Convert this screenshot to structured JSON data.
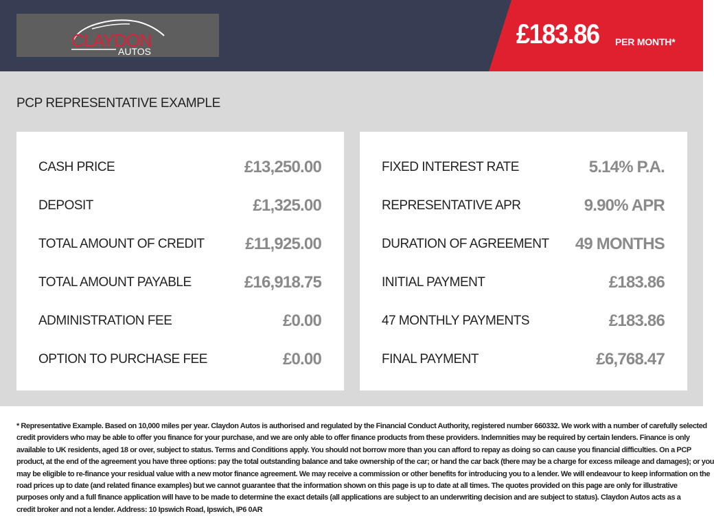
{
  "header": {
    "logo": {
      "brand_top": "CLAYDON",
      "brand_bottom": "AUTOS"
    },
    "price": "£183.86",
    "price_suffix": "PER MONTH*",
    "colors": {
      "navy": "#373d52",
      "red": "#e0202e"
    }
  },
  "main": {
    "title": "PCP REPRESENTATIVE EXAMPLE",
    "left": [
      {
        "label": "CASH PRICE",
        "value": "£13,250.00"
      },
      {
        "label": "DEPOSIT",
        "value": "£1,325.00"
      },
      {
        "label": "TOTAL AMOUNT OF CREDIT",
        "value": "£11,925.00"
      },
      {
        "label": "TOTAL AMOUNT PAYABLE",
        "value": "£16,918.75"
      },
      {
        "label": "ADMINISTRATION FEE",
        "value": "£0.00"
      },
      {
        "label": "OPTION TO PURCHASE FEE",
        "value": "£0.00"
      }
    ],
    "right": [
      {
        "label": "FIXED INTEREST RATE",
        "value": "5.14% P.A."
      },
      {
        "label": "REPRESENTATIVE APR",
        "value": "9.90% APR"
      },
      {
        "label": "DURATION OF AGREEMENT",
        "value": "49 MONTHS"
      },
      {
        "label": "INITIAL PAYMENT",
        "value": "£183.86"
      },
      {
        "label": "47 MONTHLY PAYMENTS",
        "value": "£183.86"
      },
      {
        "label": "FINAL PAYMENT",
        "value": "£6,768.47"
      }
    ]
  },
  "footer": {
    "lines": [
      "* Representative Example. Based on 10,000 miles per year. Claydon Autos is authorised and regulated by the Financial Conduct Authority, registered number 660332. We work with a number of carefully selected",
      "credit providers who may be able to offer you finance for your purchase, and we are only able to offer finance products from these providers. Indemnities may be required by certain lenders. Finance is only",
      "available to UK residents, aged 18 or over, subject to status. Terms and Conditions apply. You should not borrow more than you can afford to repay as doing so can cause you financial difficulties. On a PCP",
      "product, at the end of the agreement you have three options: pay the total outstanding balance and take ownership of the car; or hand the car back (there may be a charge for excess mileage and damages); or you",
      "may be eligible to re-finance your residual value with a new motor finance agreement. We may receive a commission or other benefits for introducing you to a lender. We will endeavour to keep information on the",
      "road prices up to date (and related finance examples) but we cannot guarantee that the information shown on this page is up to date at all times. The quotes provided on this page are only for illustrative",
      "purposes only and a full finance application will have to be made to determine the exact details (all applications are subject to an underwriting decision and are subject to status). Claydon Autos acts as a",
      "credit broker and not a lender. Address: 10 Ipswich Road, Ipswich, IP6 0AR"
    ]
  }
}
